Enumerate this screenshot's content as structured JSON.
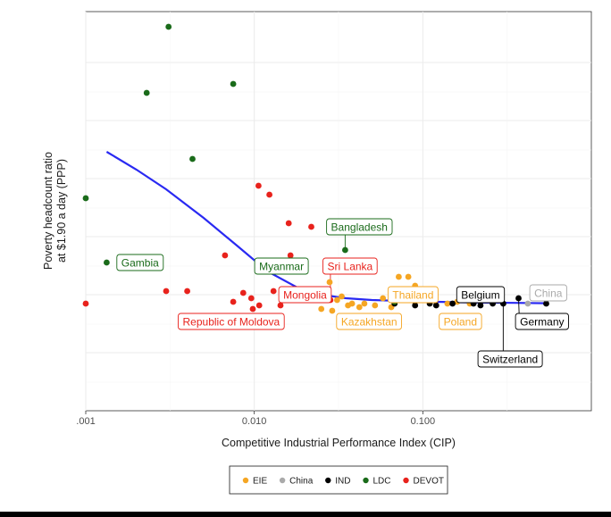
{
  "chart_data": {
    "type": "scatter",
    "xlabel": "Competitive Industrial Performance Index (CIP)",
    "ylabel": [
      "Poverty headcount ratio",
      "at $1.90 a day (PPP)"
    ],
    "x_scale": "log10",
    "xlim": [
      0.001,
      1.0
    ],
    "x_ticks": [
      {
        "value": 0.001,
        "label": ".001"
      },
      {
        "value": 0.01,
        "label": "0.010"
      },
      {
        "value": 0.1,
        "label": "0.100"
      }
    ],
    "ylim": [
      0,
      1
    ],
    "grid": true,
    "legend_position": "bottom",
    "series": [
      {
        "name": "EIE",
        "color": "#f5a623",
        "points": [
          [
            0.028,
            0.285
          ],
          [
            0.029,
            0.205
          ],
          [
            0.031,
            0.235
          ],
          [
            0.033,
            0.245
          ],
          [
            0.036,
            0.22
          ],
          [
            0.038,
            0.225
          ],
          [
            0.042,
            0.215
          ],
          [
            0.045,
            0.225
          ],
          [
            0.052,
            0.22
          ],
          [
            0.058,
            0.24
          ],
          [
            0.065,
            0.215
          ],
          [
            0.072,
            0.3
          ],
          [
            0.082,
            0.3
          ],
          [
            0.09,
            0.275
          ],
          [
            0.11,
            0.235
          ],
          [
            0.14,
            0.225
          ],
          [
            0.16,
            0.23
          ],
          [
            0.19,
            0.225
          ],
          [
            0.025,
            0.21
          ]
        ]
      },
      {
        "name": "China",
        "color": "#aaaaaa",
        "points": [
          [
            0.42,
            0.225
          ]
        ]
      },
      {
        "name": "IND",
        "color": "#000000",
        "points": [
          [
            0.068,
            0.225
          ],
          [
            0.09,
            0.22
          ],
          [
            0.11,
            0.225
          ],
          [
            0.12,
            0.22
          ],
          [
            0.15,
            0.225
          ],
          [
            0.2,
            0.225
          ],
          [
            0.22,
            0.22
          ],
          [
            0.26,
            0.225
          ],
          [
            0.3,
            0.225
          ],
          [
            0.37,
            0.24
          ],
          [
            0.54,
            0.225
          ]
        ]
      },
      {
        "name": "LDC",
        "color": "#1a6b1a",
        "points": [
          [
            0.0031,
            1.0
          ],
          [
            0.0023,
            0.815
          ],
          [
            0.0075,
            0.84
          ],
          [
            0.0043,
            0.63
          ],
          [
            0.001,
            0.52
          ],
          [
            0.00133,
            0.34
          ],
          [
            0.0149,
            0.265
          ],
          [
            0.0346,
            0.375
          ],
          [
            0.068,
            0.23
          ]
        ]
      },
      {
        "name": "DEVOT",
        "color": "#e8221c",
        "points": [
          [
            0.0106,
            0.555
          ],
          [
            0.0123,
            0.53
          ],
          [
            0.016,
            0.45
          ],
          [
            0.0218,
            0.44
          ],
          [
            0.0067,
            0.36
          ],
          [
            0.0164,
            0.36
          ],
          [
            0.0148,
            0.345
          ],
          [
            0.0118,
            0.33
          ],
          [
            0.003,
            0.26
          ],
          [
            0.004,
            0.26
          ],
          [
            0.0086,
            0.255
          ],
          [
            0.013,
            0.26
          ],
          [
            0.0174,
            0.255
          ],
          [
            0.0096,
            0.24
          ],
          [
            0.0075,
            0.23
          ],
          [
            0.0107,
            0.22
          ],
          [
            0.0098,
            0.21
          ],
          [
            0.0143,
            0.22
          ],
          [
            0.001,
            0.225
          ],
          [
            0.0274,
            0.245
          ],
          [
            0.0283,
            0.235
          ]
        ]
      }
    ],
    "trend_line": {
      "color": "#2929f2",
      "points": [
        [
          0.00133,
          0.65
        ],
        [
          0.002,
          0.6
        ],
        [
          0.003,
          0.545
        ],
        [
          0.005,
          0.465
        ],
        [
          0.008,
          0.385
        ],
        [
          0.012,
          0.315
        ],
        [
          0.018,
          0.27
        ],
        [
          0.025,
          0.25
        ],
        [
          0.035,
          0.24
        ],
        [
          0.05,
          0.235
        ],
        [
          0.08,
          0.232
        ],
        [
          0.12,
          0.23
        ],
        [
          0.2,
          0.228
        ],
        [
          0.35,
          0.227
        ],
        [
          0.55,
          0.226
        ]
      ]
    },
    "annotations": [
      {
        "text": "Gambia",
        "group": "LDC",
        "x": 0.00133,
        "y": 0.34,
        "label_x": 0.0021,
        "label_y": 0.34,
        "leader": false
      },
      {
        "text": "Bangladesh",
        "group": "LDC",
        "x": 0.0346,
        "y": 0.375,
        "label_x": 0.042,
        "label_y": 0.44,
        "leader": true
      },
      {
        "text": "Myanmar",
        "group": "LDC",
        "x": 0.0149,
        "y": 0.265,
        "label_x": 0.0145,
        "label_y": 0.33,
        "leader": false
      },
      {
        "text": "Sri Lanka",
        "group": "DEVOT",
        "x": 0.0283,
        "y": 0.235,
        "label_x": 0.037,
        "label_y": 0.33,
        "leader": true
      },
      {
        "text": "Mongolia",
        "group": "DEVOT",
        "x": 0.0143,
        "y": 0.22,
        "label_x": 0.02,
        "label_y": 0.25,
        "leader": false
      },
      {
        "text": "Republic of Moldova",
        "group": "DEVOT",
        "x": 0.0098,
        "y": 0.21,
        "label_x": 0.0073,
        "label_y": 0.175,
        "leader": false
      },
      {
        "text": "Kazakhstan",
        "group": "EIE",
        "x": 0.042,
        "y": 0.215,
        "label_x": 0.048,
        "label_y": 0.175,
        "leader": false
      },
      {
        "text": "Thailand",
        "group": "EIE",
        "x": 0.072,
        "y": 0.3,
        "label_x": 0.0875,
        "label_y": 0.25,
        "leader": false
      },
      {
        "text": "Poland",
        "group": "EIE",
        "x": 0.14,
        "y": 0.225,
        "label_x": 0.167,
        "label_y": 0.175,
        "leader": false
      },
      {
        "text": "Belgium",
        "group": "IND",
        "x": 0.2,
        "y": 0.225,
        "label_x": 0.22,
        "label_y": 0.25,
        "leader": false
      },
      {
        "text": "China",
        "group": "China",
        "x": 0.42,
        "y": 0.225,
        "label_x": 0.555,
        "label_y": 0.255,
        "leader": false
      },
      {
        "text": "Germany",
        "group": "IND",
        "x": 0.37,
        "y": 0.24,
        "label_x": 0.51,
        "label_y": 0.175,
        "leader": true
      },
      {
        "text": "Switzerland",
        "group": "IND",
        "x": 0.3,
        "y": 0.225,
        "label_x": 0.33,
        "label_y": 0.07,
        "leader": true
      }
    ]
  }
}
